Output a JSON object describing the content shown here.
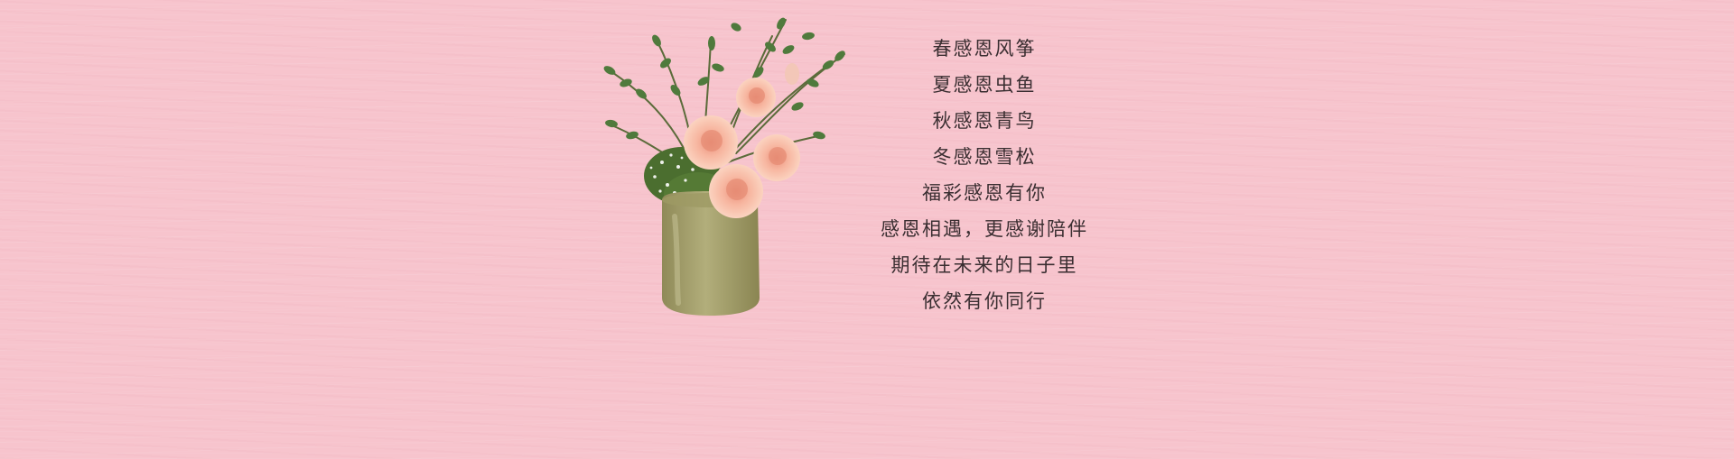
{
  "background_color": "#f7c4cd",
  "text_color": "#3a2e31",
  "illustration": {
    "subject": "flower-vase-icon",
    "vase_color": "#a6a36e",
    "rose_color": "#f6b9a0",
    "leaf_color": "#4f7a3c"
  },
  "poem": {
    "lines": [
      "春感恩风筝",
      "夏感恩虫鱼",
      "秋感恩青鸟",
      "冬感恩雪松",
      "福彩感恩有你",
      "感恩相遇，更感谢陪伴",
      "期待在未来的日子里",
      "依然有你同行"
    ]
  }
}
